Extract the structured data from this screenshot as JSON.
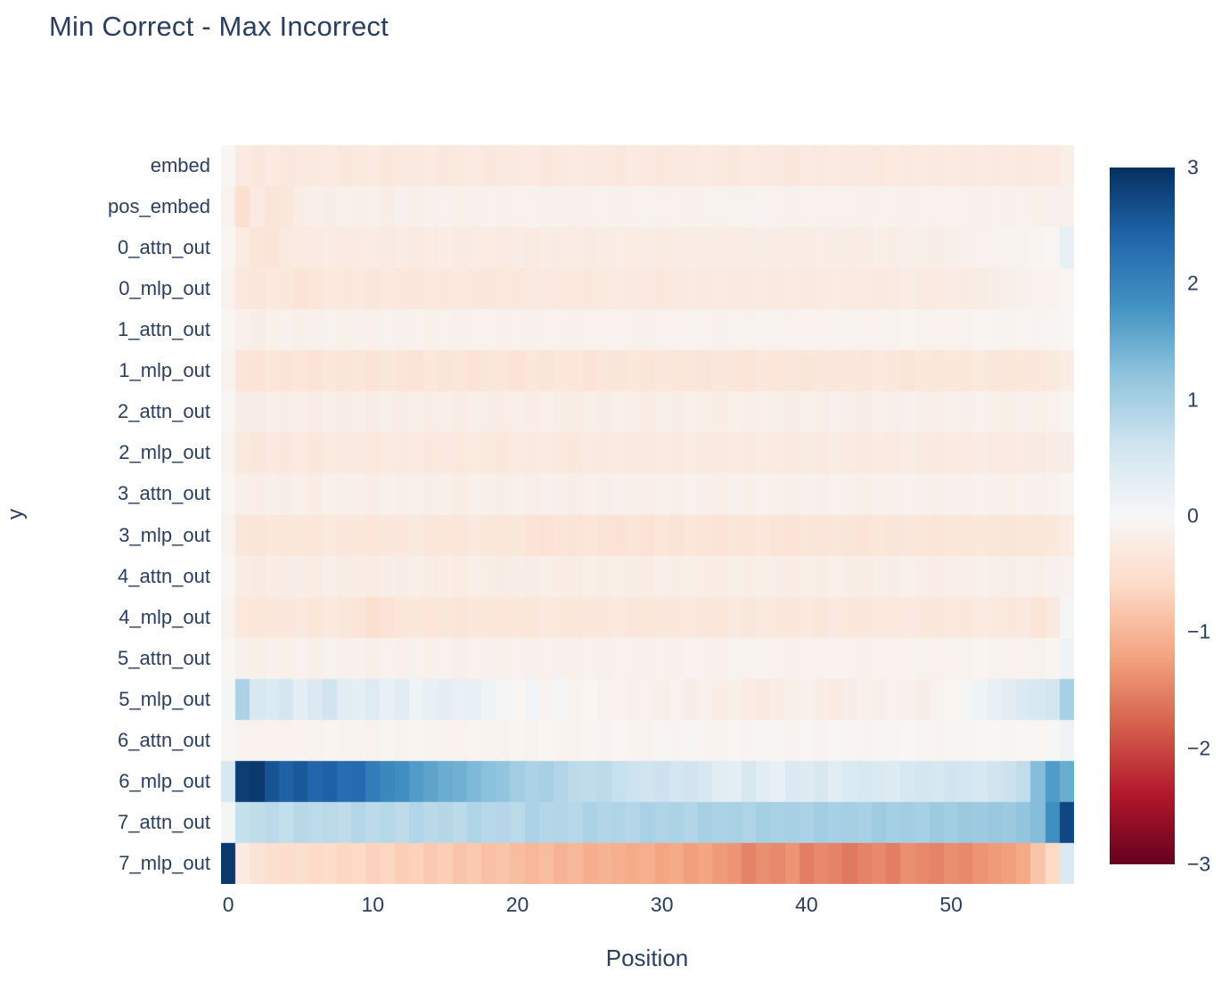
{
  "colors": {
    "text": "#2a3f5f",
    "background": "#ffffff"
  },
  "chart_data": {
    "type": "heatmap",
    "title": "Min Correct - Max Incorrect",
    "xlabel": "Position",
    "ylabel": "y",
    "grid": false,
    "legend": "colorbar-right",
    "zmin": -3,
    "zmax": 3,
    "x_range": [
      -0.5,
      58.5
    ],
    "n_positions": 59,
    "x_ticks": [
      {
        "value": 0,
        "label": "0"
      },
      {
        "value": 10,
        "label": "10"
      },
      {
        "value": 20,
        "label": "20"
      },
      {
        "value": 30,
        "label": "30"
      },
      {
        "value": 40,
        "label": "40"
      },
      {
        "value": 50,
        "label": "50"
      }
    ],
    "colorbar_ticks": [
      {
        "value": 3,
        "label": "3"
      },
      {
        "value": 2,
        "label": "2"
      },
      {
        "value": 1,
        "label": "1"
      },
      {
        "value": 0,
        "label": "0"
      },
      {
        "value": -1,
        "label": "−1"
      },
      {
        "value": -2,
        "label": "−2"
      },
      {
        "value": -3,
        "label": "−3"
      }
    ],
    "colorscale": [
      [
        -3.0,
        "#67001f"
      ],
      [
        -2.4,
        "#b2182b"
      ],
      [
        -1.8,
        "#d6604d"
      ],
      [
        -1.2,
        "#f4a582"
      ],
      [
        -0.6,
        "#fddbc7"
      ],
      [
        0.0,
        "#f7f7f7"
      ],
      [
        0.6,
        "#d1e5f0"
      ],
      [
        1.2,
        "#92c5de"
      ],
      [
        1.8,
        "#4393c3"
      ],
      [
        2.4,
        "#2166ac"
      ],
      [
        3.0,
        "#053061"
      ]
    ],
    "y_categories": [
      "embed",
      "pos_embed",
      "0_attn_out",
      "0_mlp_out",
      "1_attn_out",
      "1_mlp_out",
      "2_attn_out",
      "2_mlp_out",
      "3_attn_out",
      "3_mlp_out",
      "4_attn_out",
      "4_mlp_out",
      "5_attn_out",
      "5_mlp_out",
      "6_attn_out",
      "6_mlp_out",
      "7_attn_out",
      "7_mlp_out"
    ],
    "z": [
      [
        -0.05,
        -0.28,
        -0.32,
        -0.27,
        -0.33,
        -0.29,
        -0.31,
        -0.27,
        -0.33,
        -0.3,
        -0.28,
        -0.32,
        -0.29,
        -0.31,
        -0.27,
        -0.33,
        -0.3,
        -0.28,
        -0.32,
        -0.29,
        -0.31,
        -0.28,
        -0.32,
        -0.3,
        -0.27,
        -0.31,
        -0.29,
        -0.33,
        -0.28,
        -0.3,
        -0.32,
        -0.29,
        -0.31,
        -0.27,
        -0.3,
        -0.32,
        -0.28,
        -0.31,
        -0.29,
        -0.32,
        -0.28,
        -0.3,
        -0.27,
        -0.31,
        -0.29,
        -0.32,
        -0.28,
        -0.3,
        -0.27,
        -0.31,
        -0.28,
        -0.3,
        -0.26,
        -0.29,
        -0.27,
        -0.3,
        -0.26,
        -0.28,
        -0.18
      ],
      [
        -0.12,
        -0.5,
        -0.28,
        -0.38,
        -0.33,
        -0.22,
        -0.18,
        -0.2,
        -0.15,
        -0.18,
        -0.16,
        -0.2,
        -0.14,
        -0.17,
        -0.15,
        -0.13,
        -0.16,
        -0.14,
        -0.12,
        -0.15,
        -0.13,
        -0.1,
        -0.14,
        -0.12,
        -0.15,
        -0.13,
        -0.11,
        -0.14,
        -0.12,
        -0.1,
        -0.13,
        -0.11,
        -0.14,
        -0.12,
        -0.1,
        -0.13,
        -0.11,
        -0.09,
        -0.12,
        -0.14,
        -0.11,
        -0.13,
        -0.1,
        -0.12,
        -0.14,
        -0.11,
        -0.13,
        -0.15,
        -0.12,
        -0.1,
        -0.13,
        -0.11,
        -0.14,
        -0.12,
        -0.15,
        -0.13,
        -0.16,
        -0.14,
        -0.15
      ],
      [
        -0.05,
        -0.25,
        -0.38,
        -0.42,
        -0.3,
        -0.26,
        -0.28,
        -0.24,
        -0.27,
        -0.25,
        -0.23,
        -0.26,
        -0.24,
        -0.27,
        -0.25,
        -0.22,
        -0.26,
        -0.23,
        -0.25,
        -0.27,
        -0.24,
        -0.26,
        -0.22,
        -0.25,
        -0.23,
        -0.26,
        -0.24,
        -0.22,
        -0.25,
        -0.23,
        -0.26,
        -0.24,
        -0.21,
        -0.24,
        -0.22,
        -0.25,
        -0.23,
        -0.2,
        -0.23,
        -0.21,
        -0.24,
        -0.22,
        -0.2,
        -0.23,
        -0.21,
        -0.18,
        -0.21,
        -0.19,
        -0.17,
        -0.2,
        -0.18,
        -0.15,
        -0.12,
        -0.1,
        -0.08,
        -0.1,
        -0.07,
        -0.05,
        0.25
      ],
      [
        -0.1,
        -0.32,
        -0.35,
        -0.3,
        -0.33,
        -0.42,
        -0.36,
        -0.3,
        -0.33,
        -0.31,
        -0.34,
        -0.3,
        -0.32,
        -0.35,
        -0.31,
        -0.33,
        -0.3,
        -0.32,
        -0.34,
        -0.3,
        -0.33,
        -0.31,
        -0.29,
        -0.32,
        -0.3,
        -0.33,
        -0.31,
        -0.28,
        -0.31,
        -0.29,
        -0.32,
        -0.3,
        -0.27,
        -0.3,
        -0.28,
        -0.31,
        -0.29,
        -0.26,
        -0.29,
        -0.27,
        -0.3,
        -0.28,
        -0.25,
        -0.28,
        -0.26,
        -0.29,
        -0.27,
        -0.24,
        -0.27,
        -0.25,
        -0.22,
        -0.25,
        -0.23,
        -0.2,
        -0.18,
        -0.15,
        -0.12,
        -0.1,
        -0.05
      ],
      [
        -0.05,
        -0.15,
        -0.2,
        -0.16,
        -0.13,
        -0.18,
        -0.14,
        -0.11,
        -0.16,
        -0.12,
        -0.15,
        -0.1,
        -0.14,
        -0.12,
        -0.16,
        -0.11,
        -0.14,
        -0.1,
        -0.13,
        -0.15,
        -0.11,
        -0.14,
        -0.1,
        -0.12,
        -0.15,
        -0.11,
        -0.13,
        -0.09,
        -0.12,
        -0.14,
        -0.1,
        -0.13,
        -0.09,
        -0.11,
        -0.14,
        -0.1,
        -0.12,
        -0.08,
        -0.11,
        -0.13,
        -0.09,
        -0.12,
        -0.08,
        -0.1,
        -0.13,
        -0.09,
        -0.11,
        -0.07,
        -0.1,
        -0.12,
        -0.08,
        -0.1,
        -0.07,
        -0.09,
        -0.11,
        -0.07,
        -0.09,
        -0.06,
        -0.02
      ],
      [
        -0.1,
        -0.38,
        -0.42,
        -0.36,
        -0.4,
        -0.37,
        -0.41,
        -0.35,
        -0.39,
        -0.36,
        -0.4,
        -0.34,
        -0.38,
        -0.41,
        -0.35,
        -0.39,
        -0.36,
        -0.4,
        -0.34,
        -0.37,
        -0.4,
        -0.35,
        -0.38,
        -0.33,
        -0.37,
        -0.4,
        -0.34,
        -0.38,
        -0.35,
        -0.39,
        -0.33,
        -0.37,
        -0.34,
        -0.38,
        -0.32,
        -0.36,
        -0.39,
        -0.33,
        -0.37,
        -0.34,
        -0.38,
        -0.32,
        -0.36,
        -0.33,
        -0.37,
        -0.31,
        -0.35,
        -0.38,
        -0.32,
        -0.36,
        -0.33,
        -0.37,
        -0.31,
        -0.34,
        -0.37,
        -0.32,
        -0.35,
        -0.3,
        -0.22
      ],
      [
        -0.05,
        -0.2,
        -0.24,
        -0.19,
        -0.22,
        -0.18,
        -0.23,
        -0.17,
        -0.21,
        -0.19,
        -0.23,
        -0.18,
        -0.21,
        -0.17,
        -0.22,
        -0.19,
        -0.23,
        -0.17,
        -0.2,
        -0.22,
        -0.18,
        -0.21,
        -0.16,
        -0.2,
        -0.22,
        -0.17,
        -0.2,
        -0.16,
        -0.19,
        -0.21,
        -0.17,
        -0.2,
        -0.15,
        -0.19,
        -0.21,
        -0.16,
        -0.19,
        -0.15,
        -0.18,
        -0.2,
        -0.16,
        -0.19,
        -0.14,
        -0.18,
        -0.2,
        -0.15,
        -0.18,
        -0.14,
        -0.17,
        -0.19,
        -0.15,
        -0.17,
        -0.13,
        -0.16,
        -0.18,
        -0.14,
        -0.16,
        -0.12,
        -0.06
      ],
      [
        -0.1,
        -0.3,
        -0.34,
        -0.29,
        -0.32,
        -0.28,
        -0.33,
        -0.27,
        -0.31,
        -0.29,
        -0.33,
        -0.28,
        -0.31,
        -0.27,
        -0.32,
        -0.29,
        -0.33,
        -0.27,
        -0.3,
        -0.32,
        -0.28,
        -0.31,
        -0.26,
        -0.3,
        -0.32,
        -0.27,
        -0.3,
        -0.26,
        -0.29,
        -0.31,
        -0.27,
        -0.3,
        -0.25,
        -0.29,
        -0.31,
        -0.26,
        -0.29,
        -0.25,
        -0.28,
        -0.3,
        -0.26,
        -0.29,
        -0.24,
        -0.28,
        -0.3,
        -0.25,
        -0.28,
        -0.24,
        -0.27,
        -0.29,
        -0.25,
        -0.27,
        -0.23,
        -0.26,
        -0.28,
        -0.24,
        -0.26,
        -0.22,
        -0.2
      ],
      [
        -0.05,
        -0.18,
        -0.22,
        -0.17,
        -0.2,
        -0.16,
        -0.21,
        -0.15,
        -0.19,
        -0.17,
        -0.21,
        -0.16,
        -0.19,
        -0.15,
        -0.2,
        -0.17,
        -0.21,
        -0.15,
        -0.18,
        -0.2,
        -0.16,
        -0.19,
        -0.14,
        -0.18,
        -0.2,
        -0.15,
        -0.18,
        -0.14,
        -0.17,
        -0.19,
        -0.15,
        -0.18,
        -0.13,
        -0.17,
        -0.19,
        -0.14,
        -0.17,
        -0.13,
        -0.16,
        -0.18,
        -0.14,
        -0.17,
        -0.12,
        -0.16,
        -0.18,
        -0.13,
        -0.16,
        -0.12,
        -0.15,
        -0.17,
        -0.13,
        -0.15,
        -0.11,
        -0.14,
        -0.16,
        -0.12,
        -0.14,
        -0.1,
        -0.06
      ],
      [
        -0.1,
        -0.34,
        -0.38,
        -0.33,
        -0.36,
        -0.32,
        -0.37,
        -0.31,
        -0.35,
        -0.33,
        -0.37,
        -0.32,
        -0.35,
        -0.31,
        -0.36,
        -0.33,
        -0.37,
        -0.31,
        -0.34,
        -0.36,
        -0.32,
        -0.4,
        -0.44,
        -0.38,
        -0.42,
        -0.37,
        -0.41,
        -0.44,
        -0.39,
        -0.42,
        -0.37,
        -0.4,
        -0.35,
        -0.39,
        -0.41,
        -0.36,
        -0.39,
        -0.35,
        -0.38,
        -0.4,
        -0.36,
        -0.39,
        -0.34,
        -0.38,
        -0.4,
        -0.35,
        -0.38,
        -0.34,
        -0.37,
        -0.39,
        -0.35,
        -0.37,
        -0.33,
        -0.36,
        -0.38,
        -0.34,
        -0.36,
        -0.32,
        -0.25
      ],
      [
        -0.05,
        -0.22,
        -0.26,
        -0.21,
        -0.24,
        -0.2,
        -0.25,
        -0.19,
        -0.23,
        -0.21,
        -0.25,
        -0.2,
        -0.23,
        -0.19,
        -0.24,
        -0.21,
        -0.25,
        -0.19,
        -0.22,
        -0.24,
        -0.2,
        -0.23,
        -0.18,
        -0.22,
        -0.24,
        -0.19,
        -0.22,
        -0.18,
        -0.21,
        -0.23,
        -0.19,
        -0.22,
        -0.17,
        -0.21,
        -0.23,
        -0.18,
        -0.21,
        -0.17,
        -0.2,
        -0.22,
        -0.18,
        -0.21,
        -0.16,
        -0.2,
        -0.22,
        -0.17,
        -0.2,
        -0.16,
        -0.19,
        -0.21,
        -0.17,
        -0.19,
        -0.15,
        -0.18,
        -0.2,
        -0.16,
        -0.18,
        -0.14,
        -0.1
      ],
      [
        -0.1,
        -0.33,
        -0.37,
        -0.32,
        -0.35,
        -0.31,
        -0.36,
        -0.3,
        -0.34,
        -0.38,
        -0.5,
        -0.42,
        -0.36,
        -0.32,
        -0.37,
        -0.34,
        -0.38,
        -0.32,
        -0.35,
        -0.37,
        -0.33,
        -0.36,
        -0.31,
        -0.35,
        -0.37,
        -0.32,
        -0.35,
        -0.31,
        -0.34,
        -0.36,
        -0.32,
        -0.35,
        -0.3,
        -0.34,
        -0.36,
        -0.31,
        -0.34,
        -0.3,
        -0.33,
        -0.35,
        -0.31,
        -0.34,
        -0.29,
        -0.33,
        -0.35,
        -0.3,
        -0.33,
        -0.29,
        -0.32,
        -0.34,
        -0.3,
        -0.32,
        -0.28,
        -0.31,
        -0.33,
        -0.29,
        -0.38,
        -0.3,
        0.05
      ],
      [
        -0.05,
        -0.14,
        -0.18,
        -0.13,
        -0.16,
        -0.12,
        -0.17,
        -0.11,
        -0.15,
        -0.13,
        -0.17,
        -0.12,
        -0.15,
        -0.11,
        -0.16,
        -0.13,
        -0.17,
        -0.11,
        -0.14,
        -0.16,
        -0.12,
        -0.15,
        -0.1,
        -0.14,
        -0.16,
        -0.11,
        -0.14,
        -0.1,
        -0.13,
        -0.15,
        -0.11,
        -0.14,
        -0.09,
        -0.13,
        -0.15,
        -0.1,
        -0.13,
        -0.09,
        -0.12,
        -0.14,
        -0.1,
        -0.13,
        -0.08,
        -0.12,
        -0.14,
        -0.09,
        -0.12,
        -0.08,
        -0.11,
        -0.13,
        -0.09,
        -0.11,
        -0.07,
        -0.1,
        -0.12,
        -0.08,
        -0.1,
        -0.06,
        0.12
      ],
      [
        0.05,
        0.95,
        0.5,
        0.45,
        0.55,
        0.3,
        0.45,
        0.6,
        0.35,
        0.3,
        0.4,
        0.25,
        0.35,
        0.15,
        0.25,
        0.3,
        0.2,
        0.25,
        0.15,
        0.05,
        -0.05,
        0.1,
        -0.08,
        0.05,
        -0.1,
        -0.05,
        -0.12,
        -0.08,
        -0.15,
        -0.1,
        -0.18,
        -0.12,
        -0.2,
        -0.15,
        -0.22,
        -0.18,
        -0.25,
        -0.3,
        -0.22,
        -0.18,
        -0.15,
        -0.2,
        -0.28,
        -0.2,
        -0.15,
        -0.18,
        -0.12,
        -0.15,
        -0.2,
        -0.1,
        -0.05,
        0.05,
        0.15,
        0.25,
        0.35,
        0.45,
        0.5,
        0.55,
        1.0
      ],
      [
        -0.02,
        -0.1,
        -0.13,
        -0.09,
        -0.12,
        -0.08,
        -0.11,
        -0.07,
        -0.1,
        -0.08,
        -0.12,
        -0.07,
        -0.1,
        -0.06,
        -0.11,
        -0.08,
        -0.12,
        -0.06,
        -0.09,
        -0.11,
        -0.07,
        -0.1,
        -0.05,
        -0.09,
        -0.11,
        -0.06,
        -0.09,
        -0.05,
        -0.08,
        -0.1,
        -0.06,
        -0.09,
        -0.04,
        -0.08,
        -0.1,
        -0.05,
        -0.08,
        -0.04,
        -0.07,
        -0.09,
        -0.05,
        -0.08,
        -0.03,
        -0.07,
        -0.09,
        -0.04,
        -0.07,
        -0.03,
        -0.06,
        -0.08,
        -0.04,
        -0.06,
        -0.02,
        -0.05,
        -0.07,
        -0.03,
        -0.05,
        0.02,
        0.15
      ],
      [
        0.5,
        2.85,
        2.9,
        2.6,
        2.45,
        2.55,
        2.4,
        2.45,
        2.3,
        2.35,
        2.1,
        1.95,
        1.85,
        1.7,
        1.6,
        1.5,
        1.45,
        1.35,
        1.25,
        1.2,
        1.05,
        0.95,
        1.0,
        0.9,
        0.8,
        0.75,
        0.8,
        0.7,
        0.65,
        0.6,
        0.65,
        0.55,
        0.6,
        0.5,
        0.35,
        0.3,
        0.5,
        0.35,
        0.25,
        0.45,
        0.4,
        0.5,
        0.35,
        0.45,
        0.5,
        0.45,
        0.4,
        0.5,
        0.55,
        0.5,
        0.6,
        0.55,
        0.5,
        0.6,
        0.65,
        0.75,
        1.3,
        1.7,
        1.5
      ],
      [
        0.05,
        0.7,
        0.75,
        0.8,
        0.72,
        0.85,
        0.78,
        0.82,
        0.76,
        0.88,
        0.8,
        0.85,
        0.78,
        0.9,
        0.82,
        0.86,
        0.8,
        0.92,
        0.85,
        0.88,
        0.82,
        0.95,
        0.88,
        0.9,
        0.85,
        0.95,
        0.9,
        0.92,
        0.88,
        0.98,
        0.92,
        0.95,
        0.9,
        1.0,
        0.95,
        0.98,
        0.92,
        1.02,
        0.98,
        1.0,
        0.95,
        1.05,
        1.0,
        1.02,
        0.98,
        1.08,
        1.02,
        1.05,
        1.0,
        1.1,
        1.05,
        1.12,
        1.08,
        1.15,
        1.1,
        1.2,
        1.3,
        1.85,
        2.75
      ],
      [
        2.9,
        -0.25,
        -0.4,
        -0.5,
        -0.55,
        -0.5,
        -0.6,
        -0.55,
        -0.65,
        -0.6,
        -0.7,
        -0.65,
        -0.75,
        -0.7,
        -0.8,
        -0.75,
        -0.85,
        -0.8,
        -0.9,
        -0.85,
        -0.95,
        -1.0,
        -0.95,
        -1.05,
        -1.0,
        -1.1,
        -1.05,
        -1.1,
        -1.15,
        -1.1,
        -1.2,
        -1.15,
        -1.25,
        -1.2,
        -1.3,
        -1.35,
        -1.5,
        -1.4,
        -1.45,
        -1.35,
        -1.55,
        -1.45,
        -1.5,
        -1.6,
        -1.5,
        -1.45,
        -1.55,
        -1.4,
        -1.45,
        -1.5,
        -1.4,
        -1.45,
        -1.35,
        -1.3,
        -1.25,
        -1.15,
        -0.85,
        -0.6,
        0.45
      ]
    ]
  }
}
